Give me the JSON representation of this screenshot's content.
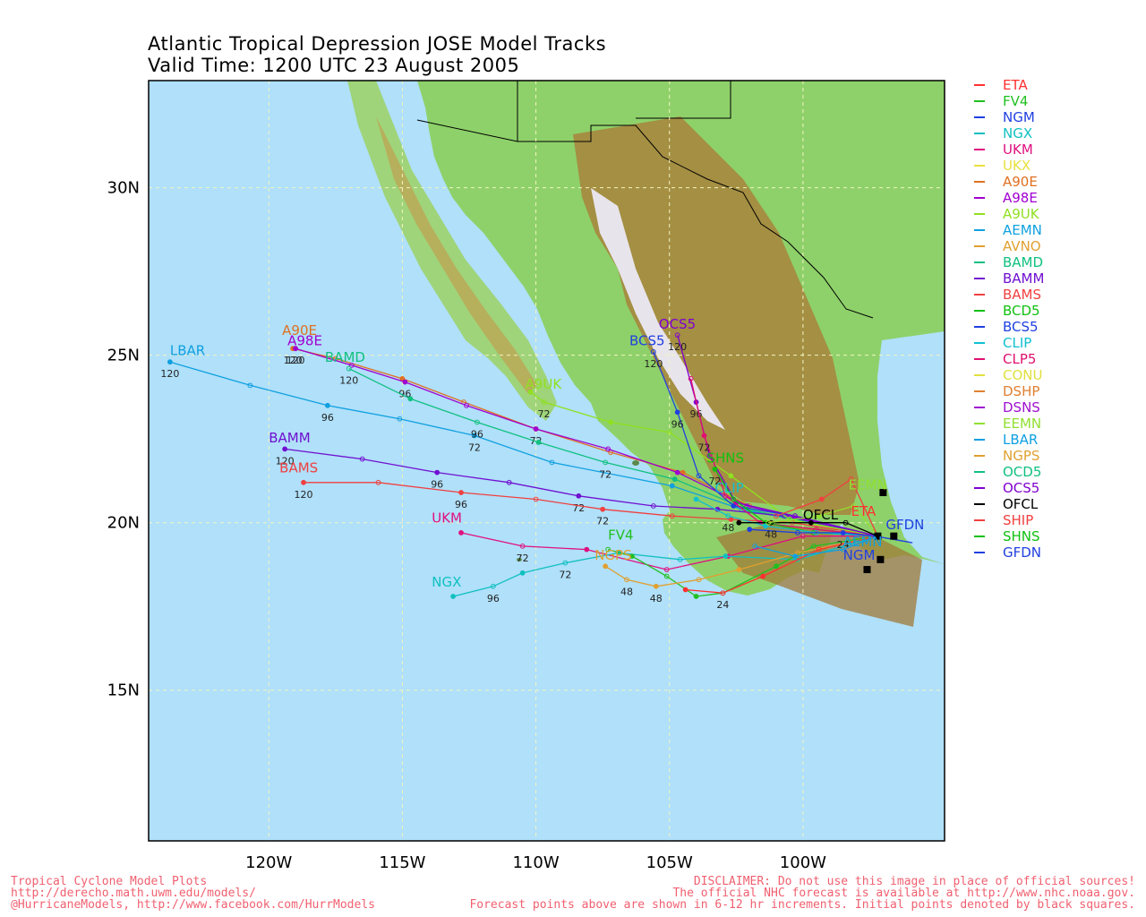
{
  "title": {
    "line1": "Atlantic Tropical Depression JOSE Model Tracks",
    "line2": "Valid Time: 1200 UTC 23 August 2005"
  },
  "map": {
    "lon_range": [
      -124.5,
      -94.7
    ],
    "lat_range": [
      10.5,
      33.2
    ],
    "ocean_color": "#b0e0fa",
    "grid_color": "#f4f4c0",
    "lat_labels": [
      {
        "lat": 30,
        "text": "30N"
      },
      {
        "lat": 25,
        "text": "25N"
      },
      {
        "lat": 20,
        "text": "20N"
      },
      {
        "lat": 15,
        "text": "15N"
      }
    ],
    "lon_labels": [
      {
        "lon": -120,
        "text": "120W"
      },
      {
        "lon": -115,
        "text": "115W"
      },
      {
        "lon": -110,
        "text": "110W"
      },
      {
        "lon": -105,
        "text": "105W"
      },
      {
        "lon": -100,
        "text": "100W"
      }
    ]
  },
  "legend": [
    {
      "name": "ETA",
      "color": "#ff3030"
    },
    {
      "name": "FV4",
      "color": "#20c020"
    },
    {
      "name": "NGM",
      "color": "#2040e0"
    },
    {
      "name": "NGX",
      "color": "#10c0c0"
    },
    {
      "name": "UKM",
      "color": "#e01080"
    },
    {
      "name": "UKX",
      "color": "#e8e040"
    },
    {
      "name": "A90E",
      "color": "#e07020"
    },
    {
      "name": "A98E",
      "color": "#a000d0"
    },
    {
      "name": "A9UK",
      "color": "#90e020"
    },
    {
      "name": "AEMN",
      "color": "#10a0e0"
    },
    {
      "name": "AVNO",
      "color": "#e0a030"
    },
    {
      "name": "BAMD",
      "color": "#10c080"
    },
    {
      "name": "BAMM",
      "color": "#7010d0"
    },
    {
      "name": "BAMS",
      "color": "#f04040"
    },
    {
      "name": "BCD5",
      "color": "#10c010"
    },
    {
      "name": "BCS5",
      "color": "#2040e0"
    },
    {
      "name": "CLIP",
      "color": "#10c0d0"
    },
    {
      "name": "CLP5",
      "color": "#e01070"
    },
    {
      "name": "CONU",
      "color": "#e0e040"
    },
    {
      "name": "DSHP",
      "color": "#e08030"
    },
    {
      "name": "DSNS",
      "color": "#a010d0"
    },
    {
      "name": "EEMN",
      "color": "#90e030"
    },
    {
      "name": "LBAR",
      "color": "#10a0e0"
    },
    {
      "name": "NGPS",
      "color": "#e0a030"
    },
    {
      "name": "OCD5",
      "color": "#10c080"
    },
    {
      "name": "OCS5",
      "color": "#8000d0"
    },
    {
      "name": "OFCL",
      "color": "#000000"
    },
    {
      "name": "SHIP",
      "color": "#f04040"
    },
    {
      "name": "SHNS",
      "color": "#10c010"
    },
    {
      "name": "GFDN",
      "color": "#2040e0"
    }
  ],
  "tracks": [
    {
      "name": "LBAR",
      "color": "#10a0e0",
      "points": [
        [
          -97.2,
          19.6
        ],
        [
          -102.3,
          20.4
        ],
        [
          -104.9,
          21.1
        ],
        [
          -109.4,
          21.8
        ],
        [
          -112.3,
          22.6
        ],
        [
          -115.1,
          23.1
        ],
        [
          -117.8,
          23.5
        ],
        [
          -120.7,
          24.1
        ],
        [
          -123.7,
          24.8
        ]
      ],
      "labels": [
        [
          -112.3,
          22.6,
          "72"
        ],
        [
          -117.8,
          23.5,
          "96"
        ],
        [
          -123.7,
          24.8,
          "120"
        ]
      ]
    },
    {
      "name": "A90E",
      "color": "#e07020",
      "points": [
        [
          -97.2,
          19.6
        ],
        [
          -102.0,
          20.5
        ],
        [
          -104.5,
          21.5
        ],
        [
          -107.2,
          22.1
        ],
        [
          -110.0,
          22.8
        ],
        [
          -112.7,
          23.6
        ],
        [
          -115.0,
          24.3
        ],
        [
          -117.5,
          24.9
        ],
        [
          -119.1,
          25.2
        ]
      ],
      "labels": [
        [
          -119.1,
          25.2,
          "120"
        ]
      ]
    },
    {
      "name": "A98E",
      "color": "#a000d0",
      "points": [
        [
          -97.2,
          19.6
        ],
        [
          -102.1,
          20.5
        ],
        [
          -104.7,
          21.5
        ],
        [
          -107.3,
          22.2
        ],
        [
          -110.0,
          22.8
        ],
        [
          -112.6,
          23.5
        ],
        [
          -114.9,
          24.2
        ],
        [
          -116.9,
          24.7
        ],
        [
          -119.0,
          25.2
        ]
      ],
      "labels": [
        [
          -110.0,
          22.8,
          "72"
        ],
        [
          -114.9,
          24.2,
          "96"
        ],
        [
          -119.0,
          25.2,
          "120"
        ]
      ]
    },
    {
      "name": "BAMD",
      "color": "#10c080",
      "points": [
        [
          -97.2,
          19.6
        ],
        [
          -102.1,
          20.4
        ],
        [
          -104.8,
          21.3
        ],
        [
          -107.4,
          21.8
        ],
        [
          -109.9,
          22.4
        ],
        [
          -112.2,
          23.0
        ],
        [
          -114.7,
          23.7
        ],
        [
          -117.0,
          24.6
        ]
      ],
      "labels": [
        [
          -107.4,
          21.8,
          "72"
        ],
        [
          -112.2,
          23.0,
          "96"
        ],
        [
          -117.0,
          24.6,
          "120"
        ]
      ]
    },
    {
      "name": "BAMM",
      "color": "#7010d0",
      "points": [
        [
          -97.2,
          19.6
        ],
        [
          -100.7,
          20.2
        ],
        [
          -103.2,
          20.4
        ],
        [
          -105.6,
          20.5
        ],
        [
          -108.4,
          20.8
        ],
        [
          -111.0,
          21.2
        ],
        [
          -113.7,
          21.5
        ],
        [
          -116.5,
          21.9
        ],
        [
          -119.4,
          22.2
        ]
      ],
      "labels": [
        [
          -108.4,
          20.8,
          "72"
        ],
        [
          -113.7,
          21.5,
          "96"
        ],
        [
          -119.4,
          22.2,
          "120"
        ]
      ]
    },
    {
      "name": "BAMS",
      "color": "#f04040",
      "points": [
        [
          -97.2,
          19.6
        ],
        [
          -100.4,
          20.0
        ],
        [
          -102.7,
          20.1
        ],
        [
          -104.9,
          20.2
        ],
        [
          -107.5,
          20.4
        ],
        [
          -110.0,
          20.7
        ],
        [
          -112.8,
          20.9
        ],
        [
          -115.9,
          21.2
        ],
        [
          -118.7,
          21.2
        ]
      ],
      "labels": [
        [
          -107.5,
          20.4,
          "72"
        ],
        [
          -112.8,
          20.9,
          "96"
        ],
        [
          -118.7,
          21.2,
          "120"
        ]
      ]
    },
    {
      "name": "UKM",
      "color": "#e01080",
      "points": [
        [
          -97.2,
          19.6
        ],
        [
          -100.0,
          19.6
        ],
        [
          -102.8,
          19.0
        ],
        [
          -105.1,
          18.6
        ],
        [
          -108.1,
          19.2
        ],
        [
          -110.5,
          19.3
        ],
        [
          -112.8,
          19.7
        ]
      ],
      "labels": [
        [
          -110.5,
          19.3,
          "72"
        ]
      ]
    },
    {
      "name": "NGX",
      "color": "#10c0c0",
      "points": [
        [
          -97.2,
          19.6
        ],
        [
          -100.2,
          18.9
        ],
        [
          -102.9,
          19.0
        ],
        [
          -104.6,
          18.9
        ],
        [
          -106.9,
          19.1
        ],
        [
          -108.9,
          18.8
        ],
        [
          -110.5,
          18.5
        ],
        [
          -111.6,
          18.1
        ],
        [
          -113.1,
          17.8
        ]
      ],
      "labels": [
        [
          -108.9,
          18.8,
          "72"
        ],
        [
          -111.6,
          18.1,
          "96"
        ]
      ]
    },
    {
      "name": "FV4",
      "color": "#20c020",
      "points": [
        [
          -97.2,
          19.6
        ],
        [
          -99.6,
          19.3
        ],
        [
          -101.0,
          18.7
        ],
        [
          -103.0,
          17.9
        ],
        [
          -104.0,
          17.8
        ],
        [
          -105.1,
          18.4
        ],
        [
          -106.4,
          19.0
        ],
        [
          -107.3,
          19.2
        ]
      ],
      "labels": []
    },
    {
      "name": "NGPS",
      "color": "#e0a030",
      "points": [
        [
          -97.2,
          19.6
        ],
        [
          -100.2,
          19.1
        ],
        [
          -102.4,
          18.6
        ],
        [
          -103.9,
          18.3
        ],
        [
          -105.5,
          18.1
        ],
        [
          -106.6,
          18.3
        ],
        [
          -107.4,
          18.7
        ]
      ],
      "labels": [
        [
          -106.6,
          18.3,
          "48"
        ],
        [
          -105.5,
          18.1,
          "48"
        ]
      ]
    },
    {
      "name": "ETA",
      "color": "#ff3030",
      "points": [
        [
          -97.2,
          19.6
        ],
        [
          -99.4,
          19.2
        ],
        [
          -101.5,
          18.4
        ],
        [
          -103.0,
          17.9
        ],
        [
          -104.4,
          18.0
        ]
      ],
      "labels": [
        [
          -103.0,
          17.9,
          "24"
        ]
      ]
    },
    {
      "name": "A9UK",
      "color": "#90e020",
      "points": [
        [
          -97.2,
          19.6
        ],
        [
          -100.5,
          20.1
        ],
        [
          -102.7,
          21.4
        ],
        [
          -105.0,
          22.7
        ],
        [
          -107.2,
          23.0
        ],
        [
          -109.7,
          23.6
        ],
        [
          -110.2,
          23.9
        ]
      ],
      "labels": [
        [
          -109.7,
          23.6,
          "72"
        ]
      ]
    },
    {
      "name": "BCS5",
      "color": "#2040e0",
      "points": [
        [
          -97.2,
          19.6
        ],
        [
          -100.3,
          20.2
        ],
        [
          -102.6,
          20.5
        ],
        [
          -103.9,
          21.4
        ],
        [
          -104.7,
          23.3
        ],
        [
          -105.6,
          25.1
        ]
      ],
      "labels": [
        [
          -104.7,
          23.3,
          "96"
        ],
        [
          -105.6,
          25.1,
          "120"
        ]
      ]
    },
    {
      "name": "OCS5",
      "color": "#8000d0",
      "points": [
        [
          -97.2,
          19.6
        ],
        [
          -100.3,
          20.2
        ],
        [
          -102.5,
          20.6
        ],
        [
          -103.5,
          22.0
        ],
        [
          -104.0,
          23.6
        ],
        [
          -104.7,
          25.6
        ]
      ],
      "labels": [
        [
          -104.0,
          23.6,
          "96"
        ],
        [
          -104.7,
          25.6,
          "120"
        ]
      ]
    },
    {
      "name": "CLP5",
      "color": "#e01070",
      "points": [
        [
          -97.2,
          19.6
        ],
        [
          -99.5,
          19.8
        ],
        [
          -101.6,
          20.0
        ],
        [
          -102.9,
          20.8
        ],
        [
          -103.7,
          22.6
        ],
        [
          -104.2,
          24.3
        ]
      ],
      "labels": [
        [
          -103.7,
          22.6,
          "72"
        ]
      ]
    },
    {
      "name": "SHNS",
      "color": "#10c010",
      "points": [
        [
          -97.2,
          19.6
        ],
        [
          -99.6,
          19.7
        ],
        [
          -101.4,
          20.0
        ],
        [
          -102.6,
          20.7
        ],
        [
          -103.3,
          21.6
        ]
      ],
      "labels": [
        [
          -103.3,
          21.6,
          "72"
        ]
      ]
    },
    {
      "name": "CLIP",
      "color": "#10c0d0",
      "points": [
        [
          -97.2,
          19.6
        ],
        [
          -99.5,
          19.7
        ],
        [
          -101.4,
          19.9
        ],
        [
          -102.8,
          20.2
        ],
        [
          -104.0,
          20.7
        ]
      ],
      "labels": [
        [
          -102.8,
          20.2,
          "48"
        ]
      ]
    },
    {
      "name": "GFDN",
      "color": "#2040e0",
      "points": [
        [
          -95.9,
          19.4
        ],
        [
          -97.3,
          19.6
        ],
        [
          -98.5,
          19.7
        ],
        [
          -100.2,
          19.7
        ],
        [
          -102.0,
          19.8
        ]
      ],
      "labels": [
        [
          -98.5,
          19.7,
          "24"
        ]
      ]
    },
    {
      "name": "SHIP",
      "color": "#f04040",
      "points": [
        [
          -97.2,
          19.6
        ],
        [
          -98.2,
          21.3
        ],
        [
          -99.3,
          20.7
        ],
        [
          -101.0,
          20.2
        ]
      ],
      "labels": []
    },
    {
      "name": "OFCL",
      "color": "#000000",
      "points": [
        [
          -97.2,
          19.6
        ],
        [
          -98.4,
          20.0
        ],
        [
          -99.7,
          20.0
        ],
        [
          -101.2,
          20.0
        ],
        [
          -102.4,
          20.0
        ]
      ],
      "labels": [
        [
          -101.2,
          20.0,
          "48"
        ]
      ]
    },
    {
      "name": "AEMN",
      "color": "#10a0e0",
      "points": [
        [
          -97.2,
          19.6
        ],
        [
          -98.5,
          19.2
        ],
        [
          -100.3,
          19.0
        ],
        [
          -101.8,
          19.3
        ]
      ],
      "labels": []
    },
    {
      "name": "EEMN",
      "color": "#90e030",
      "points": [
        [
          -97.2,
          19.6
        ],
        [
          -98.1,
          20.5
        ],
        [
          -99.4,
          20.2
        ],
        [
          -101.3,
          20.0
        ]
      ],
      "labels": []
    }
  ],
  "track_labels": [
    {
      "text": "LBAR",
      "lon": -123.7,
      "lat": 25.0,
      "color": "#10a0e0"
    },
    {
      "text": "A90E",
      "lon": -119.5,
      "lat": 25.6,
      "color": "#e07020"
    },
    {
      "text": "A98E",
      "lon": -119.3,
      "lat": 25.3,
      "color": "#a000d0"
    },
    {
      "text": "BAMD",
      "lon": -117.9,
      "lat": 24.8,
      "color": "#10c080"
    },
    {
      "text": "BAMM",
      "lon": -120.0,
      "lat": 22.4,
      "color": "#7010d0"
    },
    {
      "text": "BAMS",
      "lon": -119.6,
      "lat": 21.5,
      "color": "#f04040"
    },
    {
      "text": "UKM",
      "lon": -113.9,
      "lat": 20.0,
      "color": "#e01080"
    },
    {
      "text": "NGX",
      "lon": -113.9,
      "lat": 18.1,
      "color": "#10c0c0"
    },
    {
      "text": "FV4",
      "lon": -107.3,
      "lat": 19.5,
      "color": "#20c020"
    },
    {
      "text": "NGPS",
      "lon": -107.8,
      "lat": 18.9,
      "color": "#e0a030"
    },
    {
      "text": "A9UK",
      "lon": -110.4,
      "lat": 24.0,
      "color": "#90e020"
    },
    {
      "text": "BCS5",
      "lon": -106.5,
      "lat": 25.3,
      "color": "#2040e0"
    },
    {
      "text": "OCS5",
      "lon": -105.4,
      "lat": 25.8,
      "color": "#8000d0"
    },
    {
      "text": "SHNS",
      "lon": -103.6,
      "lat": 21.8,
      "color": "#10c010"
    },
    {
      "text": "CLIP",
      "lon": -103.3,
      "lat": 20.9,
      "color": "#10c0d0"
    },
    {
      "text": "OFCL",
      "lon": -100.0,
      "lat": 20.1,
      "color": "#000000"
    },
    {
      "text": "EEMN",
      "lon": -98.3,
      "lat": 21.0,
      "color": "#90e030"
    },
    {
      "text": "GFDN",
      "lon": -96.9,
      "lat": 19.8,
      "color": "#2040e0"
    },
    {
      "text": "ETA",
      "lon": -98.2,
      "lat": 20.2,
      "color": "#ff3030"
    },
    {
      "text": "AEMN",
      "lon": -98.5,
      "lat": 19.3,
      "color": "#10a0e0"
    },
    {
      "text": "NGM",
      "lon": -98.5,
      "lat": 18.9,
      "color": "#2040e0"
    }
  ],
  "footer": {
    "left": [
      "Tropical Cyclone Model Plots",
      "http://derecho.math.uwm.edu/models/",
      "@HurricaneModels, http://www.facebook.com/HurrModels"
    ],
    "right": [
      "DISCLAIMER: Do not use this image in place of official sources!",
      "The official NHC forecast is available at http://www.nhc.noaa.gov.",
      "Forecast points above are shown in 6-12 hr increments. Initial points denoted by black squares."
    ]
  }
}
